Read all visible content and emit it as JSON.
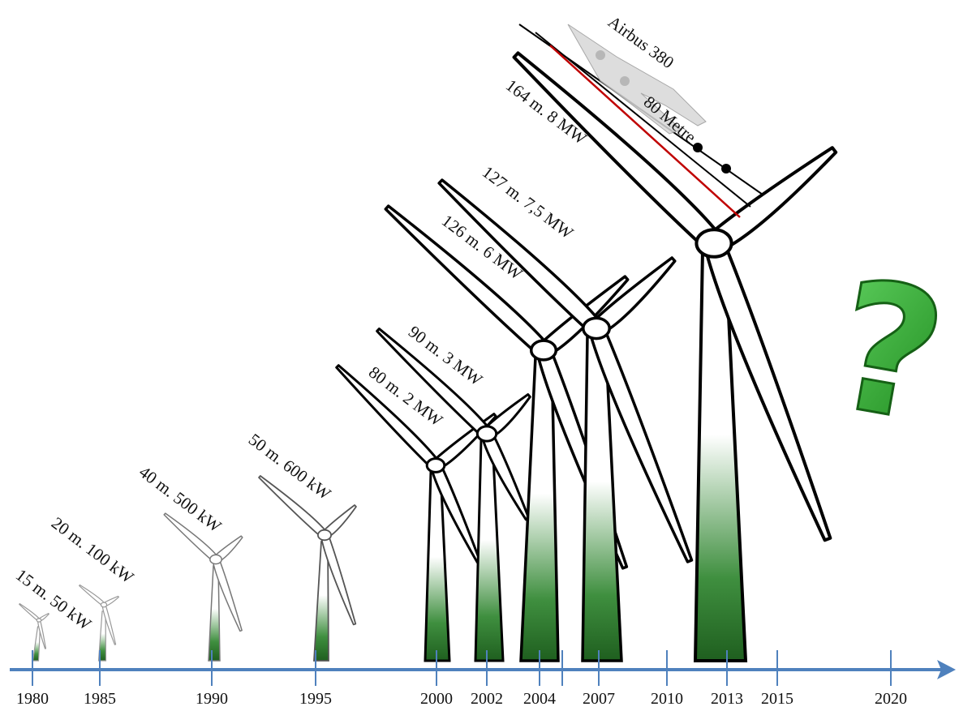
{
  "timeline": {
    "years": [
      "1980",
      "1985",
      "1990",
      "1995",
      "2000",
      "2002",
      "2004",
      "2007",
      "2010",
      "2013",
      "2015",
      "2020"
    ]
  },
  "turbines": [
    {
      "label": "15 m. 50 kW"
    },
    {
      "label": "20 m. 100 kW"
    },
    {
      "label": "40 m. 500 kW"
    },
    {
      "label": "50 m. 600 kW"
    },
    {
      "label": "80 m. 2 MW"
    },
    {
      "label": "90 m. 3 MW"
    },
    {
      "label": "126 m. 6 MW"
    },
    {
      "label": "127 m. 7,5 MW"
    },
    {
      "label": "164 m. 8 MW"
    }
  ],
  "airbus": {
    "label": "Airbus 380",
    "length": "80 Metre"
  },
  "mark": "?"
}
